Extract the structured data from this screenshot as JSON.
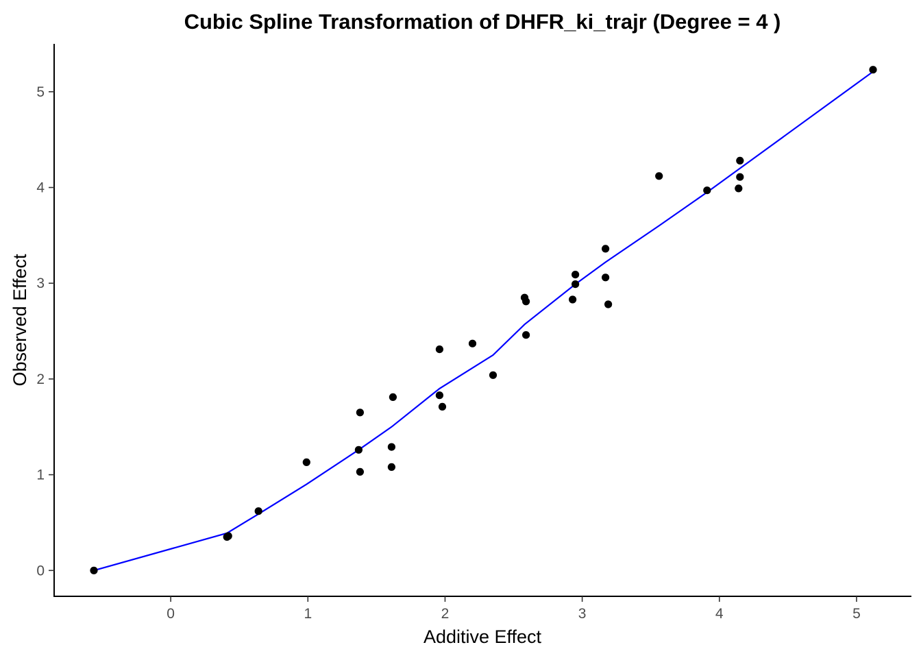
{
  "chart_data": {
    "type": "scatter",
    "title": "Cubic Spline Transformation of DHFR_ki_trajr (Degree = 4 )",
    "xlabel": "Additive Effect",
    "ylabel": "Observed Effect",
    "xlim": [
      -0.85,
      5.4
    ],
    "ylim": [
      -0.27,
      5.5
    ],
    "xticks": [
      0,
      1,
      2,
      3,
      4,
      5
    ],
    "yticks": [
      0,
      1,
      2,
      3,
      4,
      5
    ],
    "grid": false,
    "legend": "none",
    "point_color": "#000000",
    "line_color": "#0000ff",
    "series": [
      {
        "kind": "points",
        "points": [
          [
            -0.56,
            0.0
          ],
          [
            0.41,
            0.35
          ],
          [
            0.42,
            0.36
          ],
          [
            0.64,
            0.62
          ],
          [
            0.99,
            1.13
          ],
          [
            1.37,
            1.26
          ],
          [
            1.38,
            1.65
          ],
          [
            1.38,
            1.03
          ],
          [
            1.61,
            1.29
          ],
          [
            1.61,
            1.08
          ],
          [
            1.62,
            1.81
          ],
          [
            1.96,
            2.31
          ],
          [
            1.96,
            1.83
          ],
          [
            1.98,
            1.71
          ],
          [
            2.2,
            2.37
          ],
          [
            2.35,
            2.04
          ],
          [
            2.58,
            2.85
          ],
          [
            2.59,
            2.81
          ],
          [
            2.59,
            2.46
          ],
          [
            2.93,
            2.83
          ],
          [
            2.95,
            3.09
          ],
          [
            2.95,
            2.99
          ],
          [
            3.17,
            3.36
          ],
          [
            3.17,
            3.06
          ],
          [
            3.19,
            2.78
          ],
          [
            3.56,
            4.12
          ],
          [
            3.91,
            3.97
          ],
          [
            4.14,
            3.99
          ],
          [
            4.15,
            4.28
          ],
          [
            4.15,
            4.11
          ],
          [
            5.12,
            5.23
          ]
        ]
      },
      {
        "kind": "line",
        "points": [
          [
            -0.56,
            0.0
          ],
          [
            0.41,
            0.39
          ],
          [
            0.64,
            0.59
          ],
          [
            0.99,
            0.9
          ],
          [
            1.37,
            1.26
          ],
          [
            1.61,
            1.5
          ],
          [
            1.96,
            1.9
          ],
          [
            2.35,
            2.25
          ],
          [
            2.58,
            2.57
          ],
          [
            2.95,
            2.99
          ],
          [
            3.17,
            3.22
          ],
          [
            3.56,
            3.6
          ],
          [
            3.91,
            3.95
          ],
          [
            4.15,
            4.2
          ],
          [
            5.12,
            5.21
          ]
        ]
      }
    ]
  }
}
